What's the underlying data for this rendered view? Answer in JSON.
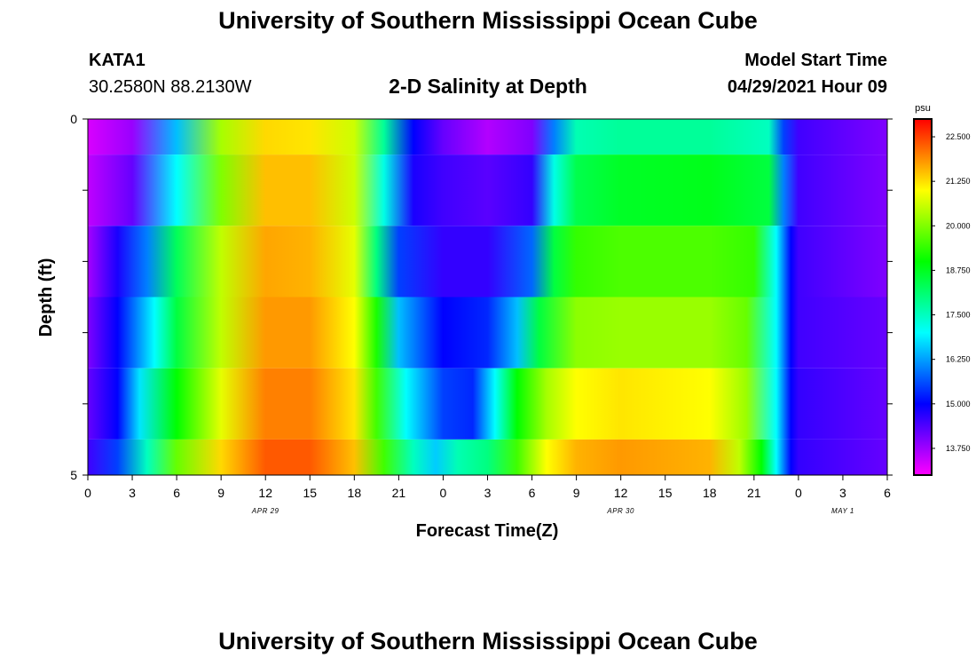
{
  "page": {
    "title_top": "University of Southern Mississippi Ocean Cube",
    "title_bottom": "University of Southern Mississippi Ocean Cube",
    "station": "KATA1",
    "coords": "30.2580N  88.2130W",
    "plot_title": "2-D Salinity at Depth",
    "model_start_label": "Model Start Time",
    "model_start_value": "04/29/2021 Hour 09"
  },
  "chart_data": {
    "type": "heatmap",
    "xlabel": "Forecast Time(Z)",
    "ylabel": "Depth (ft)",
    "x_tick_labels": [
      "0",
      "3",
      "6",
      "9",
      "12",
      "15",
      "18",
      "21",
      "0",
      "3",
      "6",
      "9",
      "12",
      "15",
      "18",
      "21",
      "0",
      "3",
      "6"
    ],
    "date_labels": [
      {
        "text": "APR 29",
        "hour": 12
      },
      {
        "text": "APR 30",
        "hour": 36
      },
      {
        "text": "MAY 1",
        "hour": 51
      }
    ],
    "xlim": [
      0,
      54
    ],
    "y_tick_labels": [
      {
        "depth": 0,
        "label": "0"
      },
      {
        "depth": 5,
        "label": "5"
      }
    ],
    "ylim": [
      0,
      5
    ],
    "depth_bins": [
      [
        0,
        0.5
      ],
      [
        0.5,
        1.5
      ],
      [
        1.5,
        2.5
      ],
      [
        2.5,
        3.5
      ],
      [
        3.5,
        4.5
      ],
      [
        4.5,
        5
      ]
    ],
    "colorbar": {
      "unit": "psu",
      "min": 13.0,
      "max": 23.0,
      "tick_values": [
        13.75,
        15.0,
        16.25,
        17.5,
        18.75,
        20.0,
        21.25,
        22.5
      ],
      "tick_labels": [
        "13.750",
        "15.000",
        "16.250",
        "17.500",
        "18.750",
        "20.000",
        "21.250",
        "22.500"
      ]
    },
    "series": [
      {
        "depth": 0,
        "hours": [
          0,
          3,
          6,
          9,
          12,
          15,
          18,
          20,
          22,
          24,
          27,
          30,
          31.5,
          33,
          36,
          42,
          46,
          47,
          48,
          54
        ],
        "values": [
          13.3,
          13.8,
          16.5,
          20.3,
          21.3,
          21.2,
          20.6,
          17.8,
          15.0,
          14.2,
          13.6,
          14.0,
          16.0,
          17.6,
          17.8,
          17.8,
          17.5,
          15.5,
          14.5,
          14.0
        ]
      },
      {
        "depth": 1,
        "hours": [
          0,
          3,
          6,
          9,
          12,
          15,
          18,
          20,
          22,
          24,
          27,
          30,
          31.5,
          33,
          36,
          42,
          46,
          47,
          48,
          54
        ],
        "values": [
          13.5,
          14.2,
          17.0,
          20.0,
          21.5,
          21.5,
          20.6,
          17.2,
          14.8,
          14.5,
          14.3,
          14.6,
          17.2,
          18.4,
          18.7,
          18.8,
          18.5,
          16.0,
          14.5,
          14.0
        ]
      },
      {
        "depth": 2,
        "hours": [
          0,
          2,
          4,
          6,
          9,
          12,
          15,
          18,
          19.5,
          21,
          24,
          27,
          30,
          31.5,
          33,
          36,
          42,
          45,
          46.5,
          47.5,
          48,
          54
        ],
        "values": [
          13.7,
          14.8,
          16.0,
          18.3,
          20.5,
          21.7,
          21.6,
          20.8,
          18.0,
          15.5,
          14.6,
          14.6,
          15.8,
          18.5,
          19.4,
          19.6,
          19.6,
          19.4,
          17.0,
          15.0,
          14.5,
          14.0
        ]
      },
      {
        "depth": 3,
        "hours": [
          0,
          2,
          4.5,
          6,
          9,
          12,
          15,
          18,
          19.5,
          21,
          24,
          27,
          29,
          30.5,
          33,
          36,
          42,
          44.5,
          46.5,
          47.5,
          48,
          54
        ],
        "values": [
          14.0,
          15.0,
          17.0,
          18.5,
          20.5,
          21.8,
          21.8,
          21.0,
          19.2,
          16.5,
          15.0,
          15.3,
          16.5,
          18.5,
          20.1,
          20.2,
          20.2,
          19.8,
          17.0,
          15.0,
          14.5,
          14.2
        ]
      },
      {
        "depth": 4,
        "hours": [
          0,
          2,
          3.5,
          6,
          9,
          12,
          15,
          18,
          19.5,
          21.5,
          24,
          26,
          27.5,
          29,
          31,
          33,
          36,
          42,
          44.5,
          46.5,
          47.5,
          48,
          54
        ],
        "values": [
          14.2,
          15.0,
          16.8,
          19.0,
          20.8,
          22.0,
          22.0,
          21.2,
          19.5,
          17.0,
          15.5,
          15.3,
          17.0,
          19.0,
          20.3,
          21.0,
          21.2,
          21.0,
          20.2,
          17.0,
          15.0,
          14.6,
          14.2
        ]
      },
      {
        "depth": 5,
        "hours": [
          0,
          2,
          4,
          6,
          9,
          12,
          15,
          18,
          20,
          22,
          23.5,
          25,
          27,
          29,
          31,
          33,
          36,
          42,
          44,
          45.5,
          46.5,
          47.5,
          48,
          54
        ],
        "values": [
          14.5,
          15.5,
          17.5,
          19.8,
          21.3,
          22.3,
          22.3,
          21.5,
          19.5,
          17.5,
          16.6,
          17.6,
          18.0,
          19.5,
          21.0,
          21.6,
          21.8,
          21.6,
          20.5,
          19.0,
          17.0,
          15.0,
          14.6,
          14.2
        ]
      }
    ]
  }
}
